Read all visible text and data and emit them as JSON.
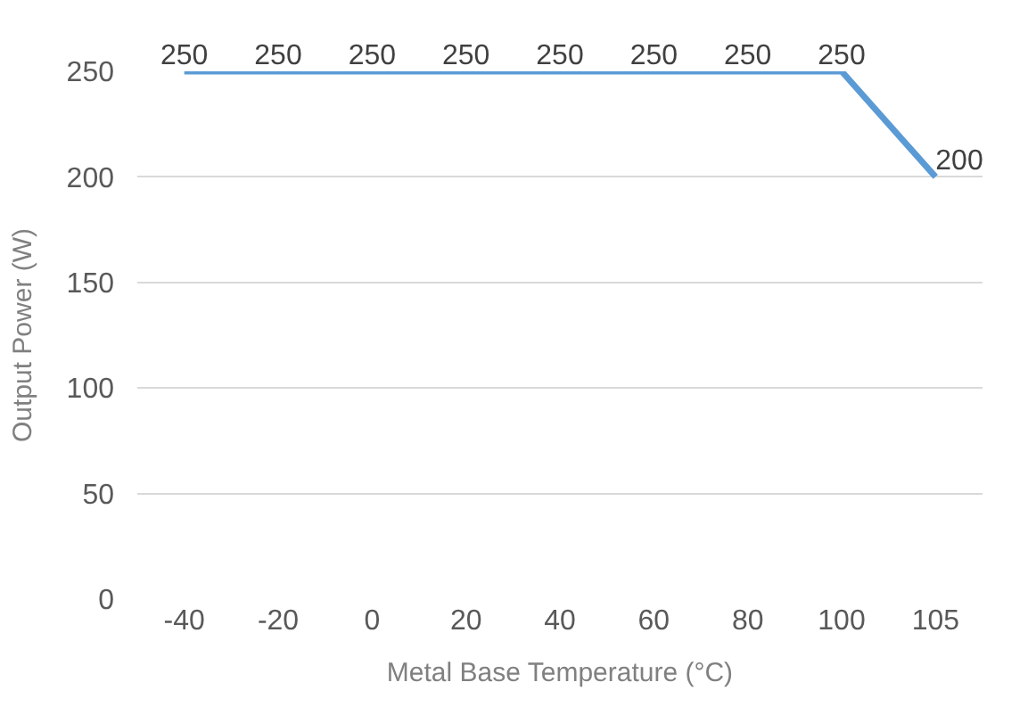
{
  "chart_data": {
    "type": "line",
    "xlabel": "Metal Base Temperature (°C)",
    "ylabel": "Output Power (W)",
    "categories": [
      "-40",
      "-20",
      "0",
      "20",
      "40",
      "60",
      "80",
      "100",
      "105"
    ],
    "series": [
      {
        "color": "#5b9bd5",
        "values": [
          250,
          250,
          250,
          250,
          250,
          250,
          250,
          250,
          200
        ]
      }
    ],
    "ylim": [
      0,
      250
    ],
    "yticks": [
      0,
      50,
      100,
      150,
      200,
      250
    ],
    "grid": "y",
    "legend": false,
    "marker": "none",
    "line_style": "solid",
    "data_labels": true
  }
}
